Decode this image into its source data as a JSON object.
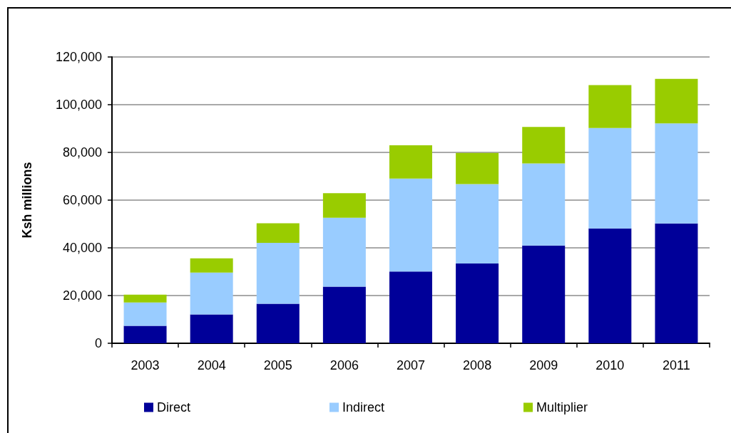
{
  "chart_data": {
    "type": "bar",
    "ylabel": "Ksh millions",
    "categories": [
      "2003",
      "2004",
      "2005",
      "2006",
      "2007",
      "2008",
      "2009",
      "2010",
      "2011"
    ],
    "series": [
      {
        "name": "Direct",
        "color": "#000099",
        "values": [
          7300,
          12100,
          16600,
          23700,
          30100,
          33400,
          41000,
          48100,
          50200
        ]
      },
      {
        "name": "Indirect",
        "color": "#99ccff",
        "values": [
          9800,
          17500,
          25500,
          28900,
          38900,
          33300,
          34400,
          42100,
          42000
        ]
      },
      {
        "name": "Multiplier",
        "color": "#99cc00",
        "values": [
          3300,
          6000,
          8200,
          10300,
          14000,
          13100,
          15300,
          18000,
          18600
        ]
      }
    ],
    "stacked": true,
    "ylim": [
      0,
      120000
    ],
    "yticks": [
      {
        "value": 0,
        "label": "0"
      },
      {
        "value": 20000,
        "label": "20,000"
      },
      {
        "value": 40000,
        "label": "40,000"
      },
      {
        "value": 60000,
        "label": "60,000"
      },
      {
        "value": 80000,
        "label": "80,000"
      },
      {
        "value": 100000,
        "label": "100,000"
      },
      {
        "value": 120000,
        "label": "120,000"
      }
    ],
    "grid": "y",
    "legend": "bottom"
  }
}
